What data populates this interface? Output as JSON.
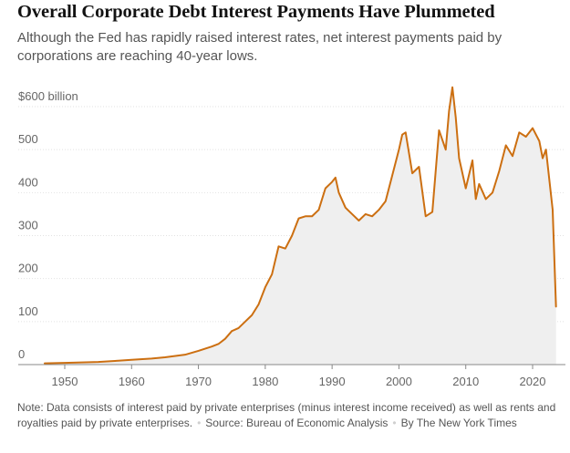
{
  "title": "Overall Corporate Debt Interest Payments Have Plummeted",
  "subtitle": "Although the Fed has rapidly raised interest rates, net interest payments paid by corporations are reaching 40-year lows.",
  "footer": {
    "note": "Note: Data consists of interest paid by private enterprises (minus interest income received) as well as rents and royalties paid by private enterprises.",
    "source": "Source: Bureau of Economic Analysis",
    "byline": "By The New York Times"
  },
  "colors": {
    "line": "#cc6f11",
    "area": "#efefef",
    "grid": "#e2e2e2"
  },
  "chart_data": {
    "type": "area",
    "title": "Overall Corporate Debt Interest Payments Have Plummeted",
    "xlabel": "",
    "ylabel": "",
    "unit": "billion dollars",
    "xlim": [
      1945,
      2026
    ],
    "ylim": [
      0,
      620
    ],
    "x_ticks": [
      1950,
      1960,
      1970,
      1980,
      1990,
      2000,
      2010,
      2020
    ],
    "x_tick_labels": [
      "1950",
      "1960",
      "1970",
      "1980",
      "1990",
      "2000",
      "2010",
      "2020"
    ],
    "y_ticks": [
      0,
      100,
      200,
      300,
      400,
      500,
      600
    ],
    "y_tick_labels": [
      "0",
      "100",
      "200",
      "300",
      "400",
      "500",
      "$600 billion"
    ],
    "series": [
      {
        "name": "Net interest payments",
        "x": [
          1947,
          1950,
          1955,
          1958,
          1960,
          1963,
          1965,
          1968,
          1970,
          1972,
          1973,
          1974,
          1975,
          1976,
          1977,
          1978,
          1979,
          1980,
          1981,
          1982,
          1983,
          1984,
          1985,
          1986,
          1987,
          1988,
          1989,
          1990,
          1990.5,
          1991,
          1992,
          1993,
          1994,
          1995,
          1996,
          1997,
          1998,
          1999,
          2000,
          2000.5,
          2001,
          2002,
          2003,
          2004,
          2005,
          2006,
          2007,
          2007.5,
          2008,
          2008.5,
          2009,
          2010,
          2011,
          2011.5,
          2012,
          2013,
          2014,
          2015,
          2016,
          2017,
          2018,
          2019,
          2020,
          2021,
          2021.5,
          2022,
          2023,
          2023.5
        ],
        "values": [
          3,
          4,
          6,
          9,
          11,
          14,
          17,
          23,
          32,
          42,
          48,
          60,
          78,
          85,
          100,
          115,
          140,
          180,
          210,
          275,
          270,
          300,
          340,
          345,
          345,
          360,
          410,
          425,
          435,
          400,
          365,
          350,
          335,
          350,
          345,
          360,
          380,
          440,
          500,
          535,
          540,
          445,
          460,
          345,
          355,
          545,
          500,
          590,
          645,
          575,
          480,
          410,
          475,
          385,
          420,
          385,
          400,
          450,
          510,
          485,
          540,
          530,
          550,
          520,
          480,
          500,
          360,
          135
        ]
      }
    ]
  }
}
